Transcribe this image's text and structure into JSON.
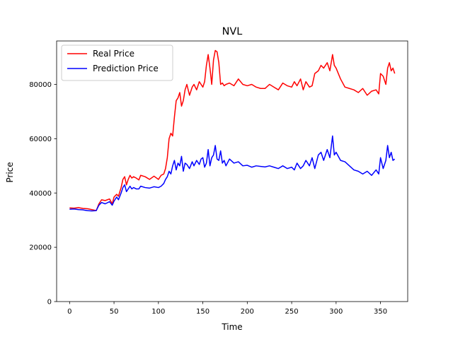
{
  "chart_data": {
    "type": "line",
    "title": "NVL",
    "xlabel": "Time",
    "ylabel": "Price",
    "xlim": [
      -14.6,
      380.6
    ],
    "ylim": [
      0,
      96000
    ],
    "x_ticks": [
      0,
      50,
      100,
      150,
      200,
      250,
      300,
      350
    ],
    "y_ticks": [
      0,
      20000,
      40000,
      60000,
      80000
    ],
    "grid": false,
    "legend_position": "top-left",
    "series": [
      {
        "name": "Real Price",
        "color": "#ff0000",
        "x": [
          0,
          5,
          10,
          15,
          20,
          25,
          30,
          33,
          36,
          40,
          45,
          48,
          50,
          53,
          55,
          58,
          60,
          62,
          64,
          66,
          68,
          70,
          72,
          75,
          78,
          80,
          85,
          90,
          95,
          100,
          103,
          106,
          108,
          110,
          112,
          114,
          116,
          118,
          120,
          122,
          124,
          126,
          128,
          130,
          132,
          135,
          138,
          140,
          143,
          146,
          148,
          150,
          152,
          154,
          156,
          158,
          160,
          162,
          164,
          166,
          168,
          170,
          172,
          174,
          176,
          180,
          185,
          190,
          195,
          200,
          205,
          210,
          215,
          220,
          225,
          230,
          235,
          240,
          245,
          250,
          253,
          256,
          260,
          263,
          266,
          270,
          273,
          276,
          280,
          283,
          286,
          290,
          293,
          296,
          298,
          300,
          305,
          310,
          315,
          320,
          325,
          330,
          335,
          340,
          345,
          348,
          350,
          353,
          356,
          358,
          360,
          362,
          364,
          366
        ],
        "y": [
          34500,
          34400,
          34600,
          34300,
          34200,
          33900,
          33500,
          36000,
          37500,
          37200,
          37800,
          36000,
          38500,
          39500,
          38800,
          42000,
          45000,
          46000,
          43000,
          45000,
          46500,
          45500,
          46000,
          45500,
          44800,
          46500,
          46000,
          45000,
          46200,
          45000,
          46500,
          47000,
          49000,
          53000,
          60000,
          62000,
          61000,
          68000,
          74000,
          75000,
          77000,
          72000,
          74000,
          78000,
          80000,
          76000,
          79000,
          80000,
          78000,
          81000,
          80000,
          79000,
          81000,
          87000,
          91000,
          86000,
          80000,
          89000,
          92500,
          92000,
          88000,
          80000,
          80500,
          79500,
          80000,
          80500,
          79500,
          82000,
          80000,
          79500,
          80000,
          79000,
          78500,
          78500,
          80000,
          79000,
          78000,
          80500,
          79500,
          79000,
          81000,
          79500,
          82000,
          78000,
          81000,
          79000,
          79500,
          84000,
          85000,
          87000,
          86000,
          88000,
          85000,
          91000,
          87000,
          86000,
          82000,
          79000,
          78500,
          78000,
          77000,
          78500,
          76000,
          77500,
          78000,
          76500,
          84000,
          83000,
          80000,
          86000,
          88000,
          85000,
          86000,
          84000
        ]
      },
      {
        "name": "Prediction Price",
        "color": "#0000ff",
        "x": [
          0,
          5,
          10,
          15,
          20,
          25,
          30,
          33,
          36,
          40,
          45,
          48,
          50,
          53,
          55,
          58,
          60,
          62,
          64,
          66,
          68,
          70,
          72,
          75,
          78,
          80,
          85,
          90,
          95,
          100,
          103,
          106,
          108,
          110,
          112,
          114,
          116,
          118,
          120,
          122,
          124,
          126,
          128,
          130,
          132,
          135,
          138,
          140,
          143,
          146,
          148,
          150,
          152,
          154,
          156,
          158,
          160,
          162,
          164,
          166,
          168,
          170,
          172,
          174,
          176,
          180,
          185,
          190,
          195,
          200,
          205,
          210,
          215,
          220,
          225,
          230,
          235,
          240,
          245,
          250,
          253,
          256,
          260,
          263,
          266,
          270,
          273,
          276,
          280,
          283,
          286,
          290,
          293,
          296,
          298,
          300,
          305,
          310,
          315,
          320,
          325,
          330,
          335,
          340,
          345,
          348,
          350,
          353,
          356,
          358,
          360,
          362,
          364,
          366
        ],
        "y": [
          34000,
          34100,
          33900,
          33800,
          33500,
          33400,
          33500,
          35500,
          36500,
          36000,
          36800,
          35500,
          37000,
          38500,
          37500,
          40000,
          42000,
          43000,
          40500,
          41500,
          42500,
          41500,
          42000,
          41500,
          41500,
          42500,
          42000,
          41800,
          42300,
          42000,
          42500,
          43500,
          45000,
          46000,
          48000,
          47000,
          50000,
          52000,
          48500,
          51000,
          50000,
          53500,
          48000,
          51000,
          50500,
          49000,
          51500,
          50000,
          52000,
          50500,
          52500,
          53000,
          49500,
          51000,
          56000,
          50000,
          53000,
          54000,
          57500,
          52500,
          52000,
          55500,
          51000,
          52000,
          50000,
          52500,
          51000,
          51500,
          50000,
          50200,
          49500,
          50000,
          49800,
          49600,
          50000,
          49500,
          49000,
          50000,
          49000,
          49500,
          48500,
          51000,
          49000,
          50000,
          52000,
          50000,
          53000,
          49000,
          54000,
          55000,
          52000,
          56000,
          53000,
          61000,
          54000,
          55000,
          52000,
          51500,
          50000,
          48500,
          48000,
          47000,
          48000,
          46500,
          48500,
          47000,
          53000,
          49000,
          52000,
          57500,
          53000,
          55000,
          52000,
          52500
        ]
      }
    ]
  }
}
